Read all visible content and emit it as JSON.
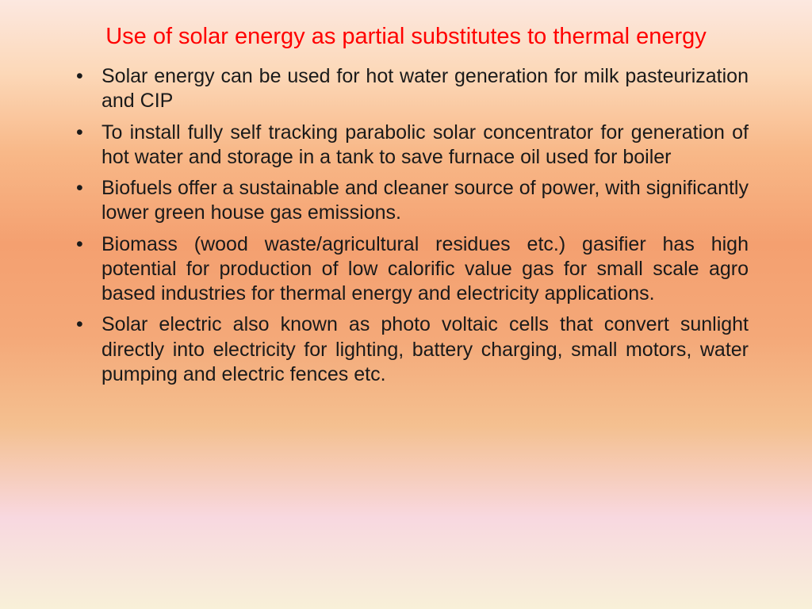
{
  "slide": {
    "title": "Use of solar energy as partial substitutes to thermal energy",
    "bullets": [
      "Solar energy can be used for hot water generation for milk pasteurization and CIP",
      "To install fully self tracking  parabolic solar concentrator for generation of hot water and storage in a tank to save furnace oil used for boiler",
      "Biofuels offer a sustainable and cleaner source of power, with significantly lower green house gas emissions.",
      "Biomass (wood waste/agricultural residues etc.) gasifier has high potential for production of low calorific value gas for small scale agro based industries for thermal energy and electricity applications.",
      "Solar electric also known as photo voltaic cells that convert sunlight directly into electricity for lighting, battery charging, small motors, water pumping and electric fences etc."
    ]
  },
  "styling": {
    "title_color": "#ff0000",
    "title_fontsize": 29,
    "body_color": "#1a1a1a",
    "body_fontsize": 25,
    "background_gradient": [
      "#fce8e0",
      "#fcd8b8",
      "#f8b888",
      "#f4a070",
      "#f4a878",
      "#f4c090",
      "#f8d8e0",
      "#f8f0d8"
    ]
  }
}
